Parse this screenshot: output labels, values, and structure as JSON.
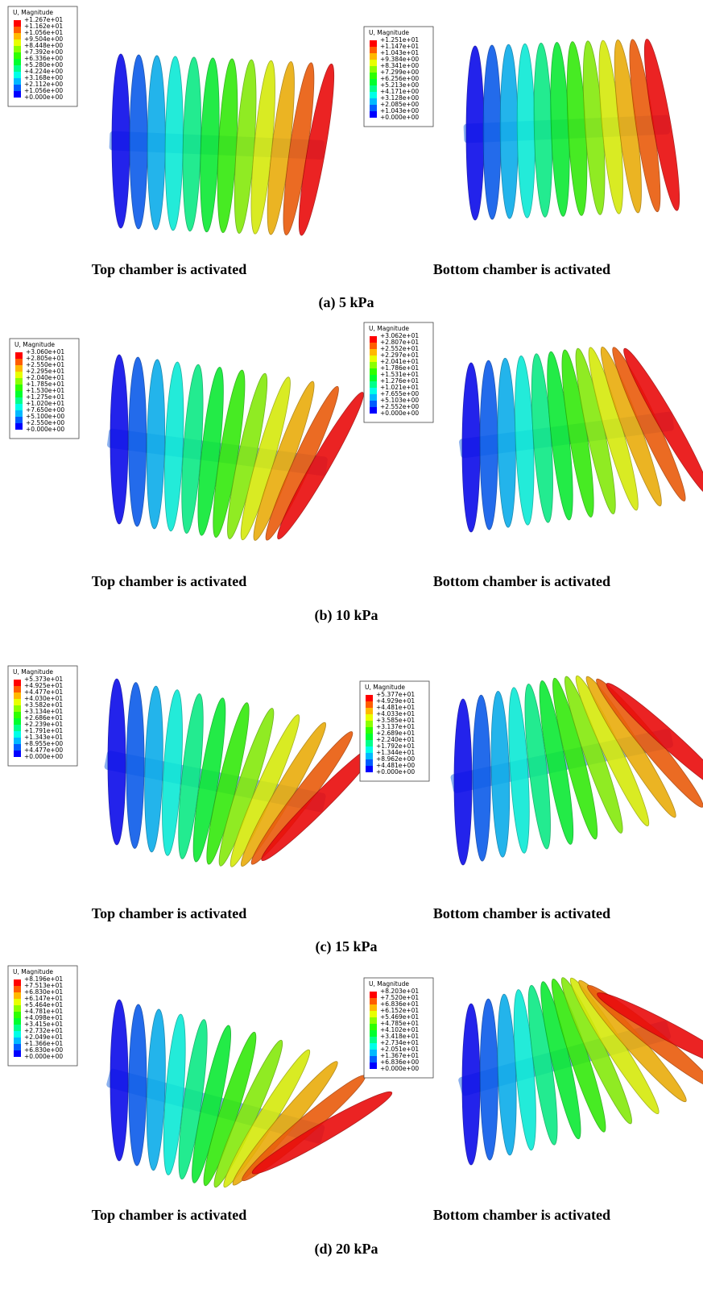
{
  "rows": [
    {
      "caption": "(a) 5 kPa",
      "panels": [
        {
          "subcaption": "Top chamber is activated",
          "legend": {
            "title": "U, Magnitude",
            "labels": [
              "+1.267e+01",
              "+1.162e+01",
              "+1.056e+01",
              "+9.504e+00",
              "+8.448e+00",
              "+7.392e+00",
              "+6.336e+00",
              "+5.280e+00",
              "+4.224e+00",
              "+3.168e+00",
              "+2.112e+00",
              "+1.056e+00",
              "+0.000e+00"
            ]
          }
        },
        {
          "subcaption": "Bottom chamber is activated",
          "legend": {
            "title": "U, Magnitude",
            "labels": [
              "+1.251e+01",
              "+1.147e+01",
              "+1.043e+01",
              "+9.384e+00",
              "+8.341e+00",
              "+7.299e+00",
              "+6.256e+00",
              "+5.213e+00",
              "+4.171e+00",
              "+3.128e+00",
              "+2.085e+00",
              "+1.043e+00",
              "+0.000e+00"
            ]
          }
        }
      ]
    },
    {
      "caption": "(b) 10 kPa",
      "panels": [
        {
          "subcaption": "Top chamber is activated",
          "legend": {
            "title": "U, Magnitude",
            "labels": [
              "+3.060e+01",
              "+2.805e+01",
              "+2.550e+01",
              "+2.295e+01",
              "+2.040e+01",
              "+1.785e+01",
              "+1.530e+01",
              "+1.275e+01",
              "+1.020e+01",
              "+7.650e+00",
              "+5.100e+00",
              "+2.550e+00",
              "+0.000e+00"
            ]
          }
        },
        {
          "subcaption": "Bottom chamber is activated",
          "legend": {
            "title": "U, Magnitude",
            "labels": [
              "+3.062e+01",
              "+2.807e+01",
              "+2.552e+01",
              "+2.297e+01",
              "+2.041e+01",
              "+1.786e+01",
              "+1.531e+01",
              "+1.276e+01",
              "+1.021e+01",
              "+7.655e+00",
              "+5.103e+00",
              "+2.552e+00",
              "+0.000e+00"
            ]
          }
        }
      ]
    },
    {
      "caption": "(c) 15 kPa",
      "panels": [
        {
          "subcaption": "Top chamber is activated",
          "legend": {
            "title": "U, Magnitude",
            "labels": [
              "+5.373e+01",
              "+4.925e+01",
              "+4.477e+01",
              "+4.030e+01",
              "+3.582e+01",
              "+3.134e+01",
              "+2.686e+01",
              "+2.239e+01",
              "+1.791e+01",
              "+1.343e+01",
              "+8.955e+00",
              "+4.477e+00",
              "+0.000e+00"
            ]
          }
        },
        {
          "subcaption": "Bottom chamber is activated",
          "legend": {
            "title": "U, Magnitude",
            "labels": [
              "+5.377e+01",
              "+4.929e+01",
              "+4.481e+01",
              "+4.033e+01",
              "+3.585e+01",
              "+3.137e+01",
              "+2.689e+01",
              "+2.240e+01",
              "+1.792e+01",
              "+1.344e+01",
              "+8.962e+00",
              "+4.481e+00",
              "+0.000e+00"
            ]
          }
        }
      ]
    },
    {
      "caption": "(d) 20 kPa",
      "panels": [
        {
          "subcaption": "Top chamber is activated",
          "legend": {
            "title": "U, Magnitude",
            "labels": [
              "+8.196e+01",
              "+7.513e+01",
              "+6.830e+01",
              "+6.147e+01",
              "+5.464e+01",
              "+4.781e+01",
              "+4.098e+01",
              "+3.415e+01",
              "+2.732e+01",
              "+2.049e+01",
              "+1.366e+01",
              "+6.830e+00",
              "+0.000e+00"
            ]
          }
        },
        {
          "subcaption": "Bottom chamber is activated",
          "legend": {
            "title": "U, Magnitude",
            "labels": [
              "+8.203e+01",
              "+7.520e+01",
              "+6.836e+01",
              "+6.152e+01",
              "+5.469e+01",
              "+4.785e+01",
              "+4.102e+01",
              "+3.418e+01",
              "+2.734e+01",
              "+2.051e+01",
              "+1.367e+01",
              "+6.836e+00",
              "+0.000e+00"
            ]
          }
        }
      ]
    }
  ]
}
